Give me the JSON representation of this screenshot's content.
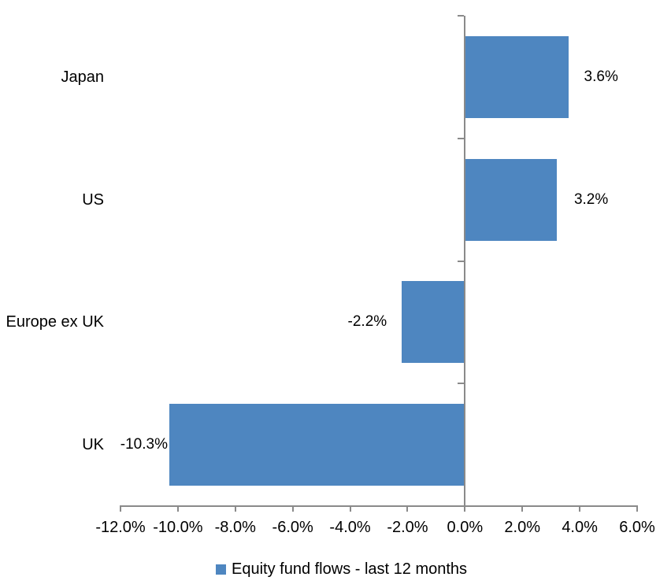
{
  "chart_data": {
    "type": "bar",
    "orientation": "horizontal",
    "title": "",
    "categories": [
      "Japan",
      "US",
      "Europe ex UK",
      "UK"
    ],
    "values": [
      3.6,
      3.2,
      -2.2,
      -10.3
    ],
    "value_labels": [
      "3.6%",
      "3.2%",
      "-2.2%",
      "-10.3%"
    ],
    "series": [
      {
        "name": "Equity fund flows - last 12 months",
        "values": [
          3.6,
          3.2,
          -2.2,
          -10.3
        ]
      }
    ],
    "xlabel": "",
    "ylabel": "",
    "xlim": [
      -12,
      6
    ],
    "x_ticks": [
      {
        "value": -12,
        "label": "-12.0%"
      },
      {
        "value": -10,
        "label": "-10.0%"
      },
      {
        "value": -8,
        "label": "-8.0%"
      },
      {
        "value": -6,
        "label": "-6.0%"
      },
      {
        "value": -4,
        "label": "-4.0%"
      },
      {
        "value": -2,
        "label": "-2.0%"
      },
      {
        "value": 0,
        "label": "0.0%"
      },
      {
        "value": 2,
        "label": "2.0%"
      },
      {
        "value": 4,
        "label": "4.0%"
      },
      {
        "value": 6,
        "label": "6.0%"
      }
    ],
    "grid": false,
    "legend": {
      "position": "bottom",
      "marker": "square",
      "label": "Equity fund flows - last 12 months"
    },
    "colors": {
      "bar": "#4E86C0",
      "axis": "#8A8A8A",
      "text": "#000000",
      "background": "#FFFFFF"
    }
  }
}
